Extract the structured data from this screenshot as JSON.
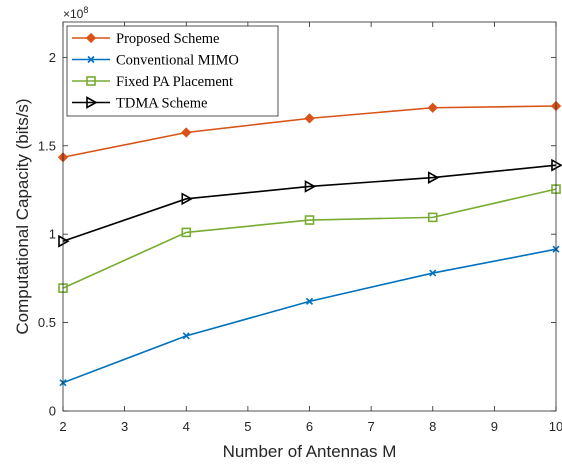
{
  "chart_data": {
    "type": "line",
    "xlabel": "Number of Antennas M",
    "ylabel": "Computational Capacity (bits/s)",
    "y_exponent": {
      "base": "×10",
      "power": "8"
    },
    "xlim": [
      2,
      10
    ],
    "ylim": [
      0,
      2.2
    ],
    "x_ticks": [
      2,
      3,
      4,
      5,
      6,
      7,
      8,
      9,
      10
    ],
    "y_ticks": [
      0,
      0.5,
      1,
      1.5,
      2
    ],
    "y_tick_labels": [
      "0",
      "0.5",
      "1",
      "1.5",
      "2"
    ],
    "grid": false,
    "legend_position": "top-left",
    "x": [
      2,
      4,
      6,
      8,
      10
    ],
    "series": [
      {
        "name": "Proposed Scheme",
        "color": "#D95319",
        "marker": "diamond",
        "values": [
          1.435,
          1.575,
          1.655,
          1.715,
          1.725
        ]
      },
      {
        "name": "Conventional MIMO",
        "color": "#0072BD",
        "marker": "x",
        "values": [
          0.16,
          0.425,
          0.62,
          0.78,
          0.915
        ]
      },
      {
        "name": "Fixed PA Placement",
        "color": "#77AC30",
        "marker": "square",
        "values": [
          0.695,
          1.01,
          1.08,
          1.095,
          1.255
        ]
      },
      {
        "name": "TDMA Scheme",
        "color": "#000000",
        "marker": "triangle-right",
        "values": [
          0.96,
          1.2,
          1.27,
          1.32,
          1.39
        ]
      }
    ]
  }
}
